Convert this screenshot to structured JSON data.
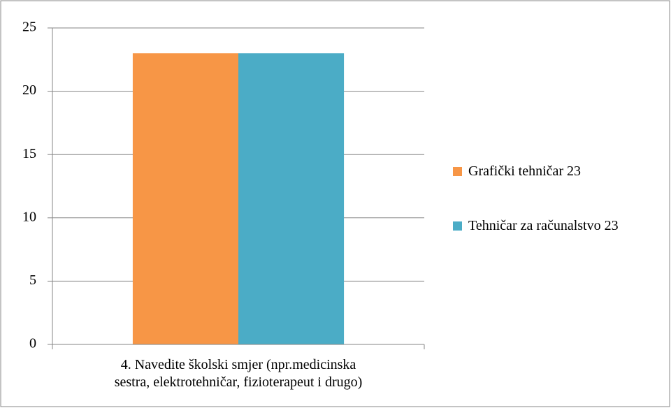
{
  "chart_data": {
    "type": "bar",
    "categories": [
      "4. Navedite školski smjer (npr.medicinska sestra, elektrotehničar, fizioterapeut i drugo)"
    ],
    "series": [
      {
        "name": "Grafički tehničar  23",
        "color": "#f79646",
        "values": [
          23
        ]
      },
      {
        "name": "Tehničar za računalstvo 23",
        "color": "#4bacc6",
        "values": [
          23
        ]
      }
    ],
    "ylim": [
      0,
      25
    ],
    "yticks": [
      0,
      5,
      10,
      15,
      20,
      25
    ],
    "grid": true,
    "legend": "right"
  }
}
